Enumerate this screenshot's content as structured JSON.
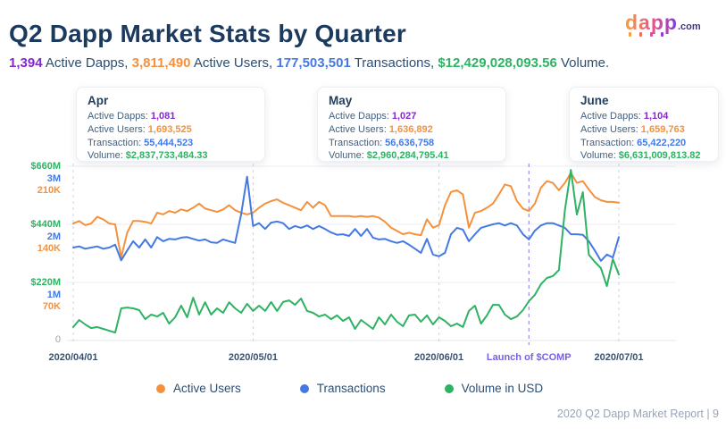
{
  "header": {
    "title": "Q2 Dapp Market Stats by Quarter",
    "logo_brand": "dapp",
    "logo_suffix": ".com"
  },
  "colors": {
    "dapps": "#8429C7",
    "users": "#F5913D",
    "txn": "#4479E4",
    "vol": "#2EB263",
    "navy": "#2E4E70",
    "launch_purple": "#7B5FE3",
    "grid": "#ECEEF2",
    "grid_dash": "#CDD3DC",
    "zero_label": "#9AA3B0",
    "logo_ticks": [
      "#F6A13B",
      "#ED6E5A",
      "#D94FA0",
      "#8E3CE0"
    ]
  },
  "summary": {
    "segments": [
      {
        "value": "1,394",
        "label": " Active Dapps, ",
        "colorKey": "dapps"
      },
      {
        "value": "3,811,490",
        "label": " Active Users, ",
        "colorKey": "users"
      },
      {
        "value": "177,503,501",
        "label": " Transactions, ",
        "colorKey": "txn"
      },
      {
        "value": "$12,429,028,093.56",
        "label": " Volume.",
        "colorKey": "vol"
      }
    ]
  },
  "months": [
    {
      "name": "Apr",
      "metrics": [
        {
          "label": "Active Dapps:",
          "value": "1,081",
          "colorKey": "dapps"
        },
        {
          "label": "Active Users:",
          "value": "1,693,525",
          "colorKey": "users"
        },
        {
          "label": "Transaction:",
          "value": "55,444,523",
          "colorKey": "txn"
        },
        {
          "label": "Volume:",
          "value": "$2,837,733,484.33",
          "colorKey": "vol"
        }
      ]
    },
    {
      "name": "May",
      "metrics": [
        {
          "label": "Active Dapps:",
          "value": "1,027",
          "colorKey": "dapps"
        },
        {
          "label": "Active Users:",
          "value": "1,636,892",
          "colorKey": "users"
        },
        {
          "label": "Transaction:",
          "value": "56,636,758",
          "colorKey": "txn"
        },
        {
          "label": "Volume:",
          "value": "$2,960,284,795.41",
          "colorKey": "vol"
        }
      ]
    },
    {
      "name": "June",
      "metrics": [
        {
          "label": "Active Dapps:",
          "value": "1,104",
          "colorKey": "dapps"
        },
        {
          "label": "Active Users:",
          "value": "1,659,763",
          "colorKey": "users"
        },
        {
          "label": "Transaction:",
          "value": "65,422,220",
          "colorKey": "txn"
        },
        {
          "label": "Volume:",
          "value": "$6,631,009,813.82",
          "colorKey": "vol"
        }
      ]
    }
  ],
  "chart_data": {
    "type": "line",
    "x_unit": "day",
    "x_range": [
      "2020/04/01",
      "2020/07/01"
    ],
    "x_ticks": [
      {
        "label": "2020/04/01",
        "day": 0
      },
      {
        "label": "2020/05/01",
        "day": 30
      },
      {
        "label": "2020/06/01",
        "day": 61
      },
      {
        "label": "2020/07/01",
        "day": 91
      }
    ],
    "annotation": {
      "label": "Launch of $COMP",
      "day": 76
    },
    "grid": true,
    "legend_position": "bottom",
    "y_axes": [
      {
        "name": "Volume in USD",
        "colorKey": "vol",
        "grid_labels": [
          "$220M",
          "$440M",
          "$660M"
        ],
        "grid_values": [
          220,
          440,
          660
        ],
        "unit": "USD millions"
      },
      {
        "name": "Transactions",
        "colorKey": "txn",
        "grid_labels": [
          "1M",
          "2M",
          "3M"
        ],
        "grid_values": [
          1,
          2,
          3
        ],
        "unit": "millions"
      },
      {
        "name": "Active Users",
        "colorKey": "users",
        "grid_labels": [
          "70K",
          "140K",
          "210K"
        ],
        "grid_values": [
          70,
          140,
          210
        ],
        "unit": "thousands"
      }
    ],
    "zero_label": "0",
    "series": [
      {
        "name": "Active Users",
        "colorKey": "users",
        "unit": "thousands",
        "grid_unit": 70,
        "values": [
          141,
          144,
          139,
          141,
          149,
          146,
          141,
          140,
          100,
          130,
          144,
          144,
          143,
          141,
          154,
          152,
          156,
          154,
          158,
          156,
          160,
          165,
          159,
          157,
          155,
          158,
          163,
          157,
          154,
          152,
          154,
          160,
          165,
          168,
          170,
          166,
          163,
          160,
          157,
          167,
          160,
          167,
          163,
          150,
          150,
          150,
          150,
          149,
          150,
          149,
          150,
          148,
          143,
          136,
          132,
          128,
          130,
          128,
          127,
          146,
          136,
          139,
          163,
          179,
          181,
          176,
          136,
          154,
          156,
          160,
          165,
          176,
          188,
          186,
          168,
          159,
          156,
          165,
          184,
          192,
          190,
          181,
          190,
          202,
          190,
          192,
          182,
          173,
          169,
          167,
          167,
          166
        ]
      },
      {
        "name": "Transactions",
        "colorKey": "txn",
        "unit": "millions",
        "grid_unit": 1,
        "values": [
          1.6,
          1.62,
          1.58,
          1.6,
          1.62,
          1.58,
          1.6,
          1.65,
          1.38,
          1.55,
          1.71,
          1.6,
          1.74,
          1.6,
          1.78,
          1.71,
          1.75,
          1.74,
          1.77,
          1.78,
          1.75,
          1.72,
          1.74,
          1.69,
          1.68,
          1.74,
          1.71,
          1.68,
          2.17,
          2.82,
          1.97,
          2.02,
          1.92,
          2.03,
          2.05,
          2.02,
          1.92,
          1.97,
          1.94,
          1.98,
          1.92,
          1.97,
          1.92,
          1.86,
          1.82,
          1.83,
          1.8,
          1.92,
          1.8,
          1.92,
          1.77,
          1.74,
          1.75,
          1.71,
          1.68,
          1.71,
          1.65,
          1.58,
          1.51,
          1.75,
          1.48,
          1.45,
          1.51,
          1.83,
          1.94,
          1.91,
          1.71,
          1.83,
          1.94,
          1.97,
          2.0,
          2.02,
          1.98,
          2.02,
          1.98,
          1.83,
          1.74,
          1.89,
          1.98,
          2.02,
          2.02,
          1.98,
          1.94,
          1.83,
          1.83,
          1.82,
          1.71,
          1.55,
          1.37,
          1.48,
          1.43,
          1.78
        ]
      },
      {
        "name": "Volume in USD",
        "colorKey": "vol",
        "unit": "USD millions",
        "grid_unit": 220,
        "values": [
          51,
          78,
          61,
          47,
          51,
          44,
          37,
          30,
          122,
          125,
          122,
          115,
          81,
          98,
          91,
          105,
          64,
          88,
          132,
          88,
          162,
          98,
          145,
          98,
          122,
          105,
          145,
          122,
          105,
          139,
          112,
          132,
          112,
          146,
          112,
          146,
          152,
          135,
          159,
          112,
          105,
          91,
          98,
          81,
          95,
          74,
          88,
          44,
          78,
          61,
          44,
          88,
          61,
          98,
          71,
          54,
          95,
          98,
          71,
          95,
          61,
          88,
          74,
          54,
          64,
          51,
          112,
          132,
          64,
          95,
          135,
          135,
          98,
          81,
          91,
          115,
          149,
          173,
          213,
          237,
          244,
          267,
          494,
          646,
          477,
          562,
          325,
          298,
          274,
          206,
          308,
          250
        ]
      }
    ],
    "legend": [
      "Active Users",
      "Transactions",
      "Volume in USD"
    ]
  },
  "footer": {
    "text": "2020 Q2 Dapp Market Report | 9"
  }
}
